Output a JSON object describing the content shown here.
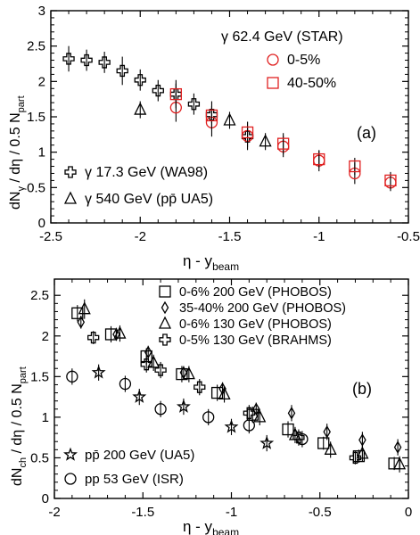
{
  "chart_data": [
    {
      "type": "scatter",
      "panel_label": "(a)",
      "xlabel": "η - y",
      "xlabel_sub": "beam",
      "ylabel": "dN",
      "ylabel_sub": "γ",
      "ylabel_rest": " / dη / 0.5 N",
      "ylabel_sub2": "part",
      "xlim": [
        -2.5,
        -0.5
      ],
      "ylim": [
        0,
        3
      ],
      "xticks": [
        -2.5,
        -2,
        -1.5,
        -1,
        -0.5
      ],
      "xtick_labels": [
        "-2.5",
        "-2",
        "-1.5",
        "-1",
        "-0.5"
      ],
      "yticks": [
        0,
        0.5,
        1,
        1.5,
        2,
        2.5,
        3
      ],
      "ytick_labels": [
        "0",
        "0.5",
        "1",
        "1.5",
        "2",
        "2.5",
        "3"
      ],
      "legend_title": "γ 62.4 GeV (STAR)",
      "legend_top": [
        {
          "label": "0-5%",
          "marker": "circle",
          "color": "#e02020"
        },
        {
          "label": "40-50%",
          "marker": "square",
          "color": "#e02020"
        }
      ],
      "legend_bottom": [
        {
          "label": "γ 17.3 GeV (WA98)",
          "marker": "cross",
          "color": "#000000"
        },
        {
          "label": "γ 540 GeV (pp̄ UA5)",
          "marker": "triangle",
          "color": "#000000"
        }
      ],
      "series": [
        {
          "name": "γ 17.3 GeV (WA98)",
          "marker": "cross",
          "color": "#000000",
          "points": [
            [
              -2.4,
              2.32,
              0.18
            ],
            [
              -2.3,
              2.3,
              0.15
            ],
            [
              -2.2,
              2.27,
              0.15
            ],
            [
              -2.1,
              2.15,
              0.2
            ],
            [
              -2.0,
              2.02,
              0.15
            ],
            [
              -1.9,
              1.87,
              0.15
            ],
            [
              -1.8,
              1.82,
              0.15
            ],
            [
              -1.7,
              1.68,
              0.15
            ],
            [
              -1.6,
              1.53,
              0.12
            ],
            [
              -1.4,
              1.22,
              0.15
            ]
          ]
        },
        {
          "name": "γ 540 GeV (pp̄ UA5)",
          "marker": "triangle",
          "color": "#000000",
          "points": [
            [
              -2.0,
              1.6,
              0.12
            ],
            [
              -1.5,
              1.45,
              0.12
            ],
            [
              -1.3,
              1.15,
              0.12
            ]
          ]
        },
        {
          "name": "0-5%",
          "marker": "circle",
          "color": "#e02020",
          "points": [
            [
              -1.8,
              1.63,
              0.2
            ],
            [
              -1.6,
              1.42,
              0.2
            ],
            [
              -1.4,
              1.23,
              0.2
            ],
            [
              -1.2,
              1.08,
              0.15
            ],
            [
              -1.0,
              0.88,
              0.15
            ],
            [
              -0.8,
              0.7,
              0.15
            ],
            [
              -0.6,
              0.57,
              0.12
            ]
          ]
        },
        {
          "name": "40-50%",
          "marker": "square",
          "color": "#e02020",
          "points": [
            [
              -1.8,
              1.82,
              0.2
            ],
            [
              -1.6,
              1.52,
              0.2
            ],
            [
              -1.4,
              1.28,
              0.15
            ],
            [
              -1.2,
              1.12,
              0.15
            ],
            [
              -1.0,
              0.9,
              0.12
            ],
            [
              -0.8,
              0.8,
              0.12
            ],
            [
              -0.6,
              0.6,
              0.12
            ]
          ]
        }
      ]
    },
    {
      "type": "scatter",
      "panel_label": "(b)",
      "xlabel": "η - y",
      "xlabel_sub": "beam",
      "ylabel": "dN",
      "ylabel_sub": "ch",
      "ylabel_rest": " / dη / 0.5 N",
      "ylabel_sub2": "part",
      "xlim": [
        -2,
        0
      ],
      "ylim": [
        0,
        2.7
      ],
      "xticks": [
        -2,
        -1.5,
        -1,
        -0.5,
        0
      ],
      "xtick_labels": [
        "-2",
        "-1.5",
        "-1",
        "-0.5",
        "0"
      ],
      "yticks": [
        0,
        0.5,
        1,
        1.5,
        2,
        2.5
      ],
      "ytick_labels": [
        "0",
        "0.5",
        "1",
        "1.5",
        "2",
        "2.5"
      ],
      "legend_top": [
        {
          "label": "0-6% 200 GeV (PHOBOS)",
          "marker": "square",
          "color": "#000000"
        },
        {
          "label": "35-40% 200 GeV (PHOBOS)",
          "marker": "diamond",
          "color": "#000000"
        },
        {
          "label": "0-6% 130 GeV (PHOBOS)",
          "marker": "triangle",
          "color": "#000000"
        },
        {
          "label": "0-5% 130 GeV (BRAHMS)",
          "marker": "cross",
          "color": "#000000"
        }
      ],
      "legend_bottom": [
        {
          "label": "pp̄ 200 GeV (UA5)",
          "marker": "star",
          "color": "#000000"
        },
        {
          "label": "pp 53 GeV (ISR)",
          "marker": "circle",
          "color": "#000000"
        }
      ],
      "series": [
        {
          "name": "0-6% 200 GeV (PHOBOS)",
          "marker": "square",
          "color": "#000000",
          "points": [
            [
              -1.87,
              2.28,
              0.1
            ],
            [
              -1.68,
              2.02,
              0.1
            ],
            [
              -1.48,
              1.75,
              0.1
            ],
            [
              -1.28,
              1.53,
              0.1
            ],
            [
              -1.08,
              1.3,
              0.1
            ],
            [
              -0.88,
              1.03,
              0.1
            ],
            [
              -0.68,
              0.85,
              0.1
            ],
            [
              -0.48,
              0.68,
              0.08
            ],
            [
              -0.28,
              0.52,
              0.08
            ],
            [
              -0.08,
              0.43,
              0.08
            ]
          ]
        },
        {
          "name": "35-40% 200 GeV (PHOBOS)",
          "marker": "diamond",
          "color": "#000000",
          "points": [
            [
              -1.85,
              2.17,
              0.08
            ],
            [
              -1.65,
              2.02,
              0.08
            ],
            [
              -1.47,
              1.8,
              0.08
            ],
            [
              -1.27,
              1.55,
              0.08
            ],
            [
              -1.05,
              1.35,
              0.08
            ],
            [
              -0.86,
              1.1,
              0.08
            ],
            [
              -0.66,
              1.05,
              0.1
            ],
            [
              -0.46,
              0.82,
              0.1
            ],
            [
              -0.26,
              0.72,
              0.1
            ],
            [
              -0.06,
              0.63,
              0.1
            ]
          ]
        },
        {
          "name": "0-6% 130 GeV (PHOBOS)",
          "marker": "triangle",
          "color": "#000000",
          "points": [
            [
              -1.83,
              2.33,
              0.12
            ],
            [
              -1.63,
              2.03,
              0.1
            ],
            [
              -1.44,
              1.67,
              0.1
            ],
            [
              -1.24,
              1.53,
              0.1
            ],
            [
              -1.04,
              1.28,
              0.1
            ],
            [
              -0.84,
              1.0,
              0.1
            ],
            [
              -0.64,
              0.78,
              0.1
            ],
            [
              -0.44,
              0.6,
              0.1
            ],
            [
              -0.26,
              0.55,
              0.1
            ],
            [
              -0.05,
              0.42,
              0.1
            ]
          ]
        },
        {
          "name": "0-5% 130 GeV (BRAHMS)",
          "marker": "cross",
          "color": "#000000",
          "points": [
            [
              -1.78,
              1.98,
              0.08
            ],
            [
              -1.48,
              1.65,
              0.1
            ],
            [
              -1.4,
              1.58,
              0.1
            ],
            [
              -1.18,
              1.37,
              0.1
            ],
            [
              -0.9,
              1.05,
              0.1
            ],
            [
              -0.62,
              0.75,
              0.1
            ],
            [
              -0.3,
              0.5,
              0.08
            ]
          ]
        },
        {
          "name": "pp̄ 200 GeV (UA5)",
          "marker": "star",
          "color": "#000000",
          "points": [
            [
              -1.75,
              1.55,
              0.1
            ],
            [
              -1.52,
              1.25,
              0.1
            ],
            [
              -1.27,
              1.13,
              0.1
            ],
            [
              -1.0,
              0.88,
              0.1
            ],
            [
              -0.8,
              0.68,
              0.1
            ]
          ]
        },
        {
          "name": "pp 53 GeV (ISR)",
          "marker": "circle",
          "color": "#000000",
          "points": [
            [
              -1.9,
              1.5,
              0.1
            ],
            [
              -1.6,
              1.41,
              0.1
            ],
            [
              -1.4,
              1.1,
              0.1
            ],
            [
              -1.13,
              1.0,
              0.1
            ],
            [
              -0.9,
              0.9,
              0.1
            ],
            [
              -0.6,
              0.73,
              0.1
            ]
          ]
        }
      ]
    }
  ]
}
